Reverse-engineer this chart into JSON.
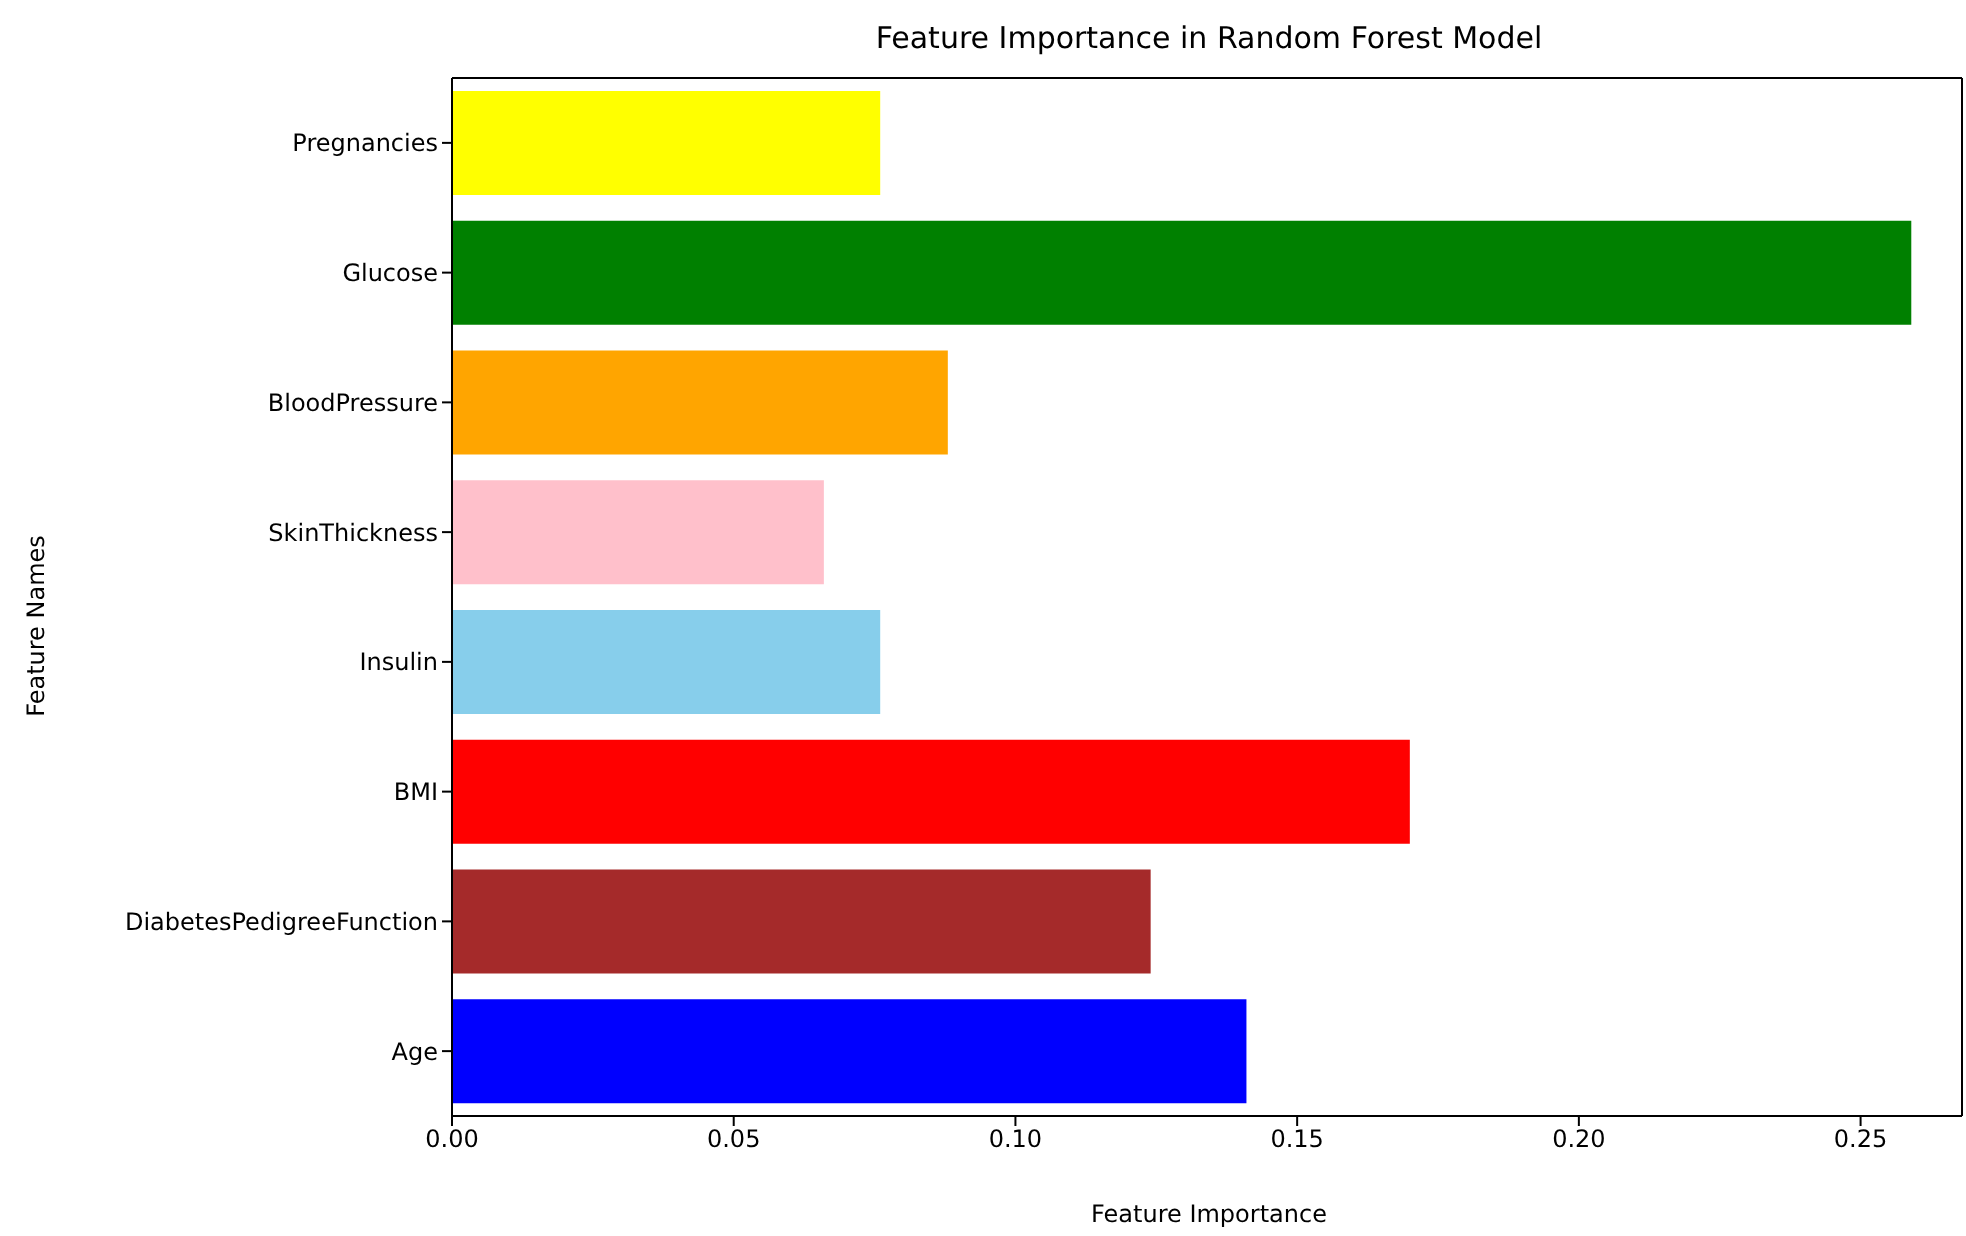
{
  "chart_data": {
    "type": "bar",
    "orientation": "horizontal",
    "title": "Feature Importance in Random Forest Model",
    "xlabel": "Feature Importance",
    "ylabel": "Feature Names",
    "categories": [
      "Pregnancies",
      "Glucose",
      "BloodPressure",
      "SkinThickness",
      "Insulin",
      "BMI",
      "DiabetesPedigreeFunction",
      "Age"
    ],
    "values": [
      0.076,
      0.259,
      0.088,
      0.066,
      0.076,
      0.17,
      0.124,
      0.141
    ],
    "colors": [
      "#ffff00",
      "#008000",
      "#ffa500",
      "#ffc0cb",
      "#87ceeb",
      "#ff0000",
      "#a52a2a",
      "#0000ff"
    ],
    "xlim": [
      0,
      0.268
    ],
    "xticks": [
      {
        "value": 0,
        "label": "0.00"
      },
      {
        "value": 0.05,
        "label": "0.05"
      },
      {
        "value": 0.1,
        "label": "0.10"
      },
      {
        "value": 0.15,
        "label": "0.15"
      },
      {
        "value": 0.2,
        "label": "0.20"
      },
      {
        "value": 0.25,
        "label": "0.25"
      }
    ],
    "grid": false,
    "legend": false
  }
}
